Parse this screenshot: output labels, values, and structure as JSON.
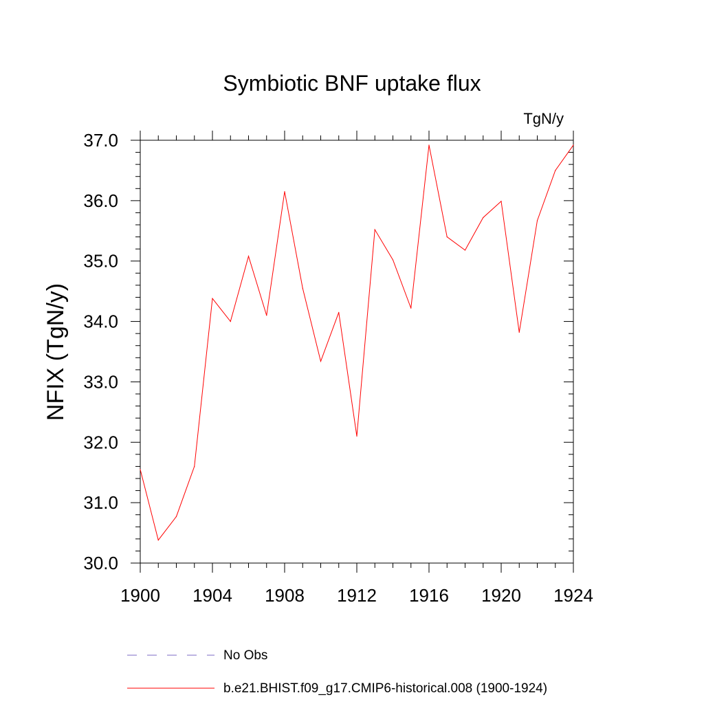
{
  "chart_data": {
    "type": "line",
    "title": "Symbiotic BNF uptake flux",
    "units_label": "TgN/y",
    "ylabel": "NFIX  (TgN/y)",
    "xlabel": "",
    "xlim": [
      1900,
      1924
    ],
    "ylim": [
      30.0,
      37.0
    ],
    "x_ticks": [
      "1900",
      "1904",
      "1908",
      "1912",
      "1916",
      "1920",
      "1924"
    ],
    "y_ticks": [
      "30.0",
      "31.0",
      "32.0",
      "33.0",
      "34.0",
      "35.0",
      "36.0",
      "37.0"
    ],
    "series": [
      {
        "name": "b.e21.BHIST.f09_g17.CMIP6-historical.008 (1900-1924)",
        "color": "#ff0000",
        "x": [
          1900,
          1901,
          1902,
          1903,
          1904,
          1905,
          1906,
          1907,
          1908,
          1909,
          1910,
          1911,
          1912,
          1913,
          1914,
          1915,
          1916,
          1917,
          1918,
          1919,
          1920,
          1921,
          1922,
          1923,
          1924
        ],
        "values": [
          31.55,
          30.38,
          30.77,
          31.6,
          34.38,
          34.0,
          35.08,
          34.1,
          36.15,
          34.55,
          33.34,
          34.15,
          32.1,
          35.52,
          35.02,
          34.22,
          36.92,
          35.4,
          35.18,
          35.72,
          35.99,
          33.82,
          35.67,
          36.5,
          36.92
        ]
      }
    ],
    "legend": [
      {
        "label": "No Obs",
        "color": "#7b68c4",
        "style": "dashed"
      },
      {
        "label": "b.e21.BHIST.f09_g17.CMIP6-historical.008 (1900-1924)",
        "color": "#ff0000",
        "style": "solid"
      }
    ],
    "grid": false
  }
}
